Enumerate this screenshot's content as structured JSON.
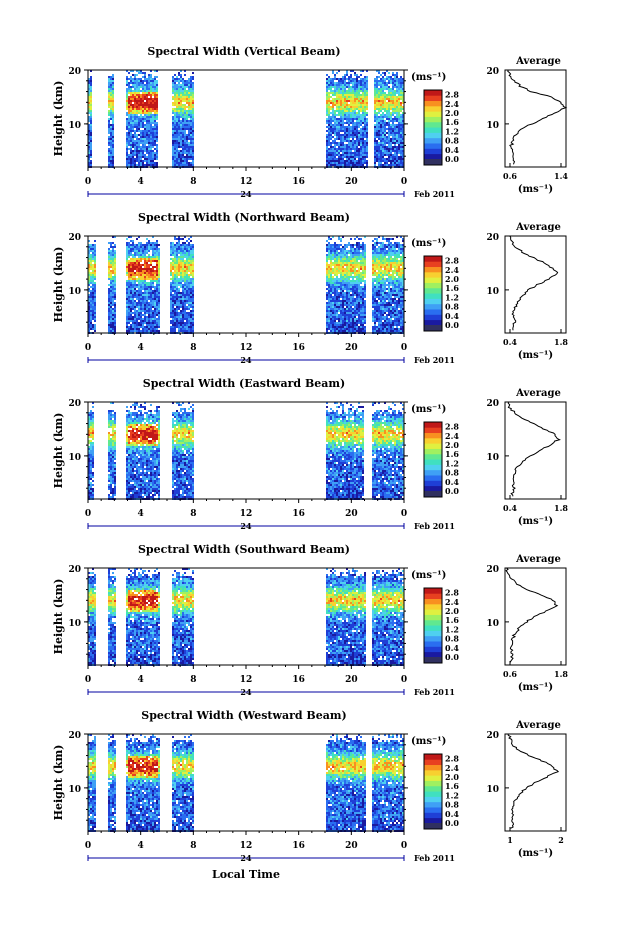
{
  "figure": {
    "date_label": "Feb 2011",
    "date_day": "24",
    "x_axis_label": "Local Time",
    "y_axis_label": "Height (km)",
    "colorbar_unit": "(ms⁻¹)",
    "avg_title": "Average",
    "avg_unit": "(ms⁻¹)"
  },
  "colorbar_ticks": [
    "0.0",
    "0.4",
    "0.8",
    "1.2",
    "1.6",
    "2.0",
    "2.4",
    "2.8"
  ],
  "colors": {
    "scale": [
      "#1a1aa0",
      "#1f3fd6",
      "#2a6ef0",
      "#3fa0f5",
      "#4fd0f0",
      "#40e0c0",
      "#60e890",
      "#a0f060",
      "#e0f040",
      "#f8d030",
      "#f89020",
      "#e84020",
      "#c01818"
    ],
    "bottom": "#303060"
  },
  "chart_data": [
    {
      "type": "heatmap",
      "title": "Spectral Width (Vertical Beam)",
      "xlabel": "",
      "ylabel": "Height (km)",
      "xlim": [
        0,
        24
      ],
      "ylim": [
        2,
        20
      ],
      "x_ticks": [
        "0",
        "4",
        "8",
        "12",
        "16",
        "20",
        "0"
      ],
      "y_ticks": [
        "10",
        "20"
      ],
      "gaps_hours": [
        [
          0.35,
          1.45
        ],
        [
          2.05,
          2.9
        ],
        [
          5.3,
          6.4
        ],
        [
          8.0,
          18.0
        ],
        [
          21.2,
          21.7
        ]
      ],
      "data_top_km": 19.5,
      "avg": {
        "xlim": [
          0.6,
          1.4
        ],
        "x_ticks": [
          "0.6",
          "1.4"
        ],
        "y_ticks": [
          "10",
          "20"
        ],
        "profile": [
          [
            2.5,
            0.72
          ],
          [
            4,
            0.7
          ],
          [
            6,
            0.68
          ],
          [
            8,
            0.74
          ],
          [
            9,
            0.82
          ],
          [
            10,
            0.95
          ],
          [
            11,
            1.1
          ],
          [
            12,
            1.25
          ],
          [
            13,
            1.38
          ],
          [
            14,
            1.32
          ],
          [
            15,
            1.2
          ],
          [
            16,
            0.95
          ],
          [
            17,
            0.8
          ],
          [
            18,
            0.72
          ],
          [
            19,
            0.66
          ],
          [
            20,
            0.64
          ]
        ]
      }
    },
    {
      "type": "heatmap",
      "title": "Spectral Width (Northward Beam)",
      "xlabel": "",
      "ylabel": "Height (km)",
      "xlim": [
        0,
        24
      ],
      "ylim": [
        2,
        20
      ],
      "x_ticks": [
        "0",
        "4",
        "8",
        "12",
        "16",
        "20",
        "0"
      ],
      "y_ticks": [
        "10",
        "20"
      ],
      "gaps_hours": [
        [
          0.6,
          1.5
        ],
        [
          2.2,
          2.9
        ],
        [
          5.4,
          6.3
        ],
        [
          8.0,
          18.0
        ],
        [
          21.1,
          21.6
        ]
      ],
      "data_top_km": 19.5,
      "avg": {
        "xlim": [
          0.4,
          1.8
        ],
        "x_ticks": [
          "0.4",
          "1.8"
        ],
        "y_ticks": [
          "10",
          "20"
        ],
        "profile": [
          [
            2.5,
            0.6
          ],
          [
            4,
            0.62
          ],
          [
            6,
            0.58
          ],
          [
            8,
            0.7
          ],
          [
            9,
            0.8
          ],
          [
            10,
            0.95
          ],
          [
            11,
            1.15
          ],
          [
            12,
            1.4
          ],
          [
            13,
            1.6
          ],
          [
            14,
            1.5
          ],
          [
            15,
            1.3
          ],
          [
            16,
            1.05
          ],
          [
            17,
            0.8
          ],
          [
            18,
            0.62
          ],
          [
            19,
            0.55
          ],
          [
            20,
            0.5
          ]
        ]
      }
    },
    {
      "type": "heatmap",
      "title": "Spectral Width (Eastward Beam)",
      "xlabel": "",
      "ylabel": "Height (km)",
      "xlim": [
        0,
        24
      ],
      "ylim": [
        2,
        20
      ],
      "x_ticks": [
        "0",
        "4",
        "8",
        "12",
        "16",
        "20",
        "0"
      ],
      "y_ticks": [
        "10",
        "20"
      ],
      "gaps_hours": [
        [
          0.5,
          1.5
        ],
        [
          2.1,
          2.9
        ],
        [
          5.4,
          6.4
        ],
        [
          8.0,
          18.0
        ],
        [
          21.0,
          21.5
        ]
      ],
      "data_top_km": 19.0,
      "avg": {
        "xlim": [
          0.4,
          1.8
        ],
        "x_ticks": [
          "0.4",
          "1.8"
        ],
        "y_ticks": [
          "10",
          "20"
        ],
        "profile": [
          [
            2.5,
            0.55
          ],
          [
            4,
            0.6
          ],
          [
            6,
            0.58
          ],
          [
            8,
            0.68
          ],
          [
            9,
            0.82
          ],
          [
            10,
            0.98
          ],
          [
            11,
            1.2
          ],
          [
            12,
            1.42
          ],
          [
            13,
            1.62
          ],
          [
            14,
            1.55
          ],
          [
            15,
            1.3
          ],
          [
            16,
            1.05
          ],
          [
            17,
            0.8
          ],
          [
            18,
            0.62
          ],
          [
            19,
            0.5
          ],
          [
            20,
            0.45
          ]
        ]
      }
    },
    {
      "type": "heatmap",
      "title": "Spectral Width (Southward Beam)",
      "xlabel": "",
      "ylabel": "Height (km)",
      "xlim": [
        0,
        24
      ],
      "ylim": [
        2,
        20
      ],
      "x_ticks": [
        "0",
        "4",
        "8",
        "12",
        "16",
        "20",
        "0"
      ],
      "y_ticks": [
        "10",
        "20"
      ],
      "gaps_hours": [
        [
          0.6,
          1.5
        ],
        [
          2.2,
          2.9
        ],
        [
          5.4,
          6.4
        ],
        [
          8.0,
          18.0
        ],
        [
          21.1,
          21.6
        ]
      ],
      "data_top_km": 19.5,
      "avg": {
        "xlim": [
          0.6,
          1.8
        ],
        "x_ticks": [
          "0.6",
          "1.8"
        ],
        "y_ticks": [
          "10",
          "20"
        ],
        "profile": [
          [
            2.5,
            0.72
          ],
          [
            4,
            0.75
          ],
          [
            6,
            0.72
          ],
          [
            8,
            0.8
          ],
          [
            9,
            0.9
          ],
          [
            10,
            1.02
          ],
          [
            11,
            1.2
          ],
          [
            12,
            1.42
          ],
          [
            13,
            1.62
          ],
          [
            14,
            1.55
          ],
          [
            15,
            1.3
          ],
          [
            16,
            1.05
          ],
          [
            17,
            0.85
          ],
          [
            18,
            0.72
          ],
          [
            19,
            0.66
          ],
          [
            20,
            0.62
          ]
        ]
      }
    },
    {
      "type": "heatmap",
      "title": "Spectral Width (Westward Beam)",
      "xlabel": "Local Time",
      "ylabel": "Height (km)",
      "xlim": [
        0,
        24
      ],
      "ylim": [
        2,
        20
      ],
      "x_ticks": [
        "0",
        "4",
        "8",
        "12",
        "16",
        "20",
        "0"
      ],
      "y_ticks": [
        "10",
        "20"
      ],
      "gaps_hours": [
        [
          0.6,
          1.5
        ],
        [
          2.2,
          2.9
        ],
        [
          5.4,
          6.4
        ],
        [
          8.0,
          18.0
        ],
        [
          21.1,
          21.6
        ]
      ],
      "data_top_km": 19.5,
      "avg": {
        "xlim": [
          0.6,
          2.0
        ],
        "x_ticks": [
          "1",
          "2"
        ],
        "y_ticks": [
          "10",
          "20"
        ],
        "profile": [
          [
            2.5,
            0.75
          ],
          [
            4,
            0.78
          ],
          [
            6,
            0.75
          ],
          [
            8,
            0.85
          ],
          [
            9,
            0.95
          ],
          [
            10,
            1.1
          ],
          [
            11,
            1.3
          ],
          [
            12,
            1.55
          ],
          [
            13,
            1.8
          ],
          [
            14,
            1.7
          ],
          [
            15,
            1.45
          ],
          [
            16,
            1.15
          ],
          [
            17,
            0.9
          ],
          [
            18,
            0.78
          ],
          [
            19,
            0.72
          ],
          [
            20,
            0.7
          ]
        ]
      }
    }
  ]
}
